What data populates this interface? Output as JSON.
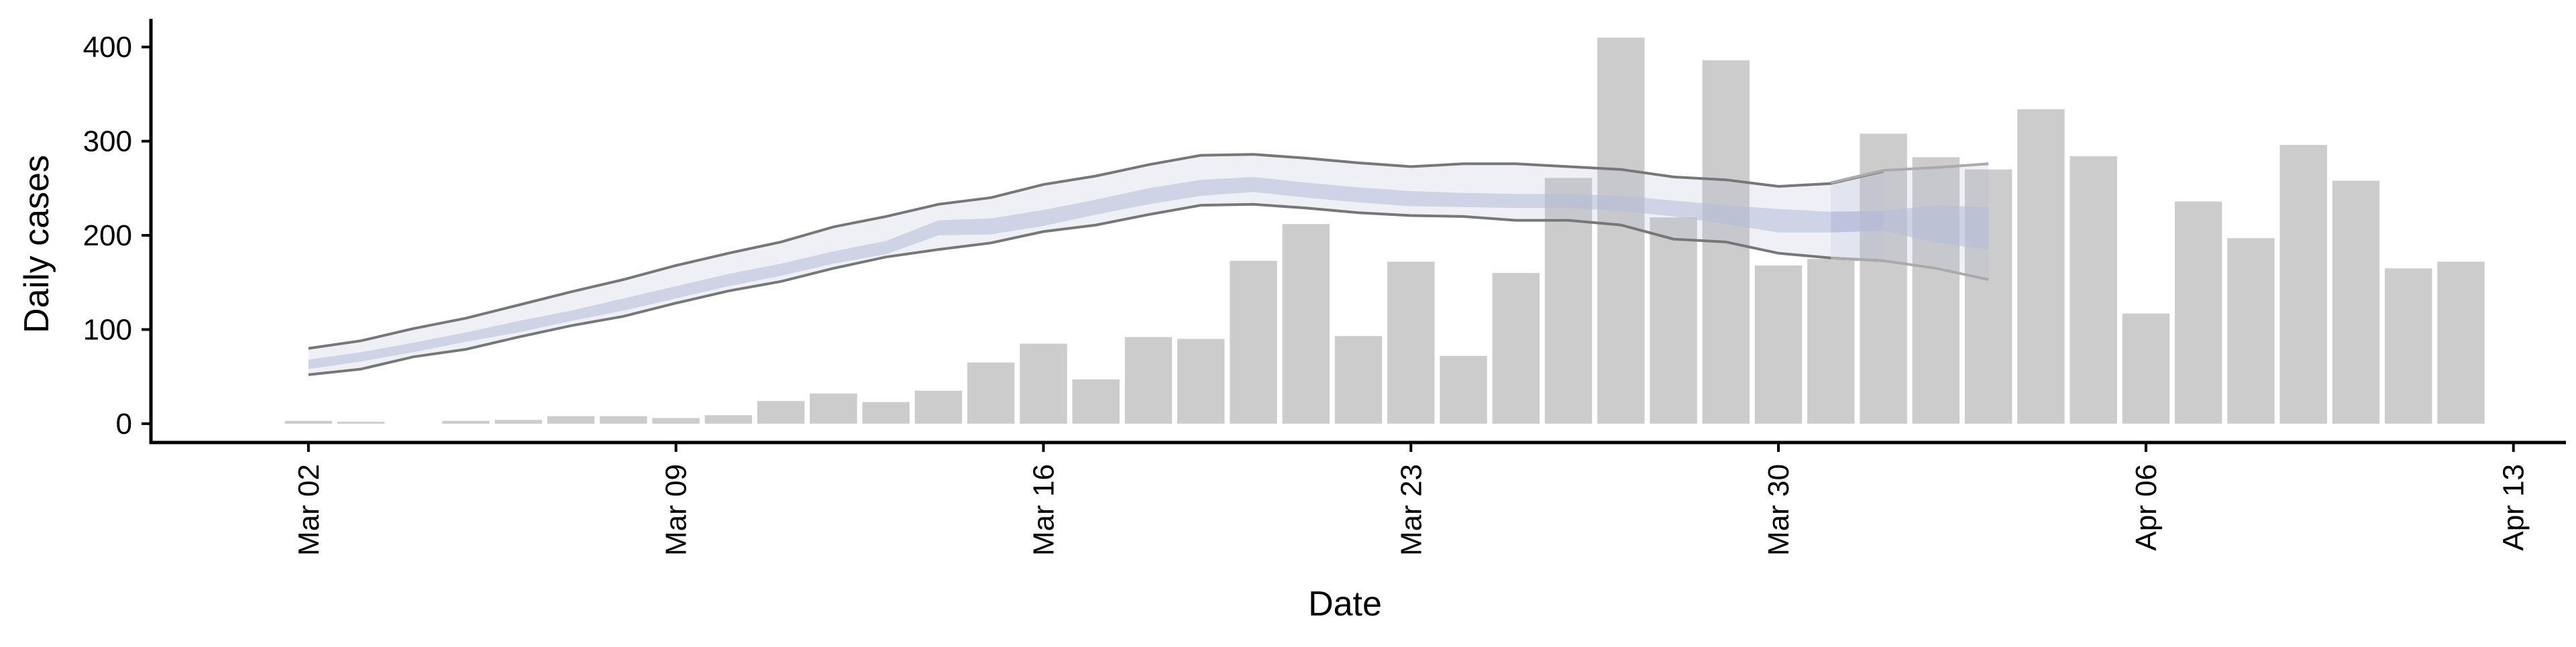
{
  "chart_data": {
    "type": "bar",
    "xlabel": "Date",
    "ylabel": "Daily cases",
    "ylim": [
      -20,
      430
    ],
    "y_ticks": [
      "0",
      "100",
      "200",
      "300",
      "400"
    ],
    "x_range": [
      "2020-02-28",
      "2020-04-14"
    ],
    "x_ticks": [
      {
        "date": "2020-03-02",
        "label": "Mar 02"
      },
      {
        "date": "2020-03-09",
        "label": "Mar 09"
      },
      {
        "date": "2020-03-16",
        "label": "Mar 16"
      },
      {
        "date": "2020-03-23",
        "label": "Mar 23"
      },
      {
        "date": "2020-03-30",
        "label": "Mar 30"
      },
      {
        "date": "2020-04-06",
        "label": "Apr 06"
      },
      {
        "date": "2020-04-13",
        "label": "Apr 13"
      }
    ],
    "grid": false,
    "legend": "none",
    "bars": {
      "color": "#cccccc",
      "dates": [
        "2020-03-02",
        "2020-03-03",
        "2020-03-04",
        "2020-03-05",
        "2020-03-06",
        "2020-03-07",
        "2020-03-08",
        "2020-03-09",
        "2020-03-10",
        "2020-03-11",
        "2020-03-12",
        "2020-03-13",
        "2020-03-14",
        "2020-03-15",
        "2020-03-16",
        "2020-03-17",
        "2020-03-18",
        "2020-03-19",
        "2020-03-20",
        "2020-03-21",
        "2020-03-22",
        "2020-03-23",
        "2020-03-24",
        "2020-03-25",
        "2020-03-26",
        "2020-03-27",
        "2020-03-28",
        "2020-03-29",
        "2020-03-30",
        "2020-03-31",
        "2020-04-01",
        "2020-04-02",
        "2020-04-03",
        "2020-04-04",
        "2020-04-05",
        "2020-04-06",
        "2020-04-07",
        "2020-04-08",
        "2020-04-09",
        "2020-04-10",
        "2020-04-11",
        "2020-04-12"
      ],
      "values": [
        3,
        2,
        0,
        3,
        4,
        8,
        8,
        6,
        9,
        24,
        32,
        23,
        35,
        65,
        85,
        47,
        92,
        90,
        173,
        212,
        93,
        172,
        72,
        160,
        261,
        410,
        219,
        386,
        168,
        175,
        308,
        283,
        270,
        334,
        284,
        117,
        236,
        197,
        296,
        258,
        165,
        172
      ]
    },
    "band_series": [
      {
        "dates": [
          "2020-03-02",
          "2020-03-03",
          "2020-03-04",
          "2020-03-05",
          "2020-03-06",
          "2020-03-07",
          "2020-03-08",
          "2020-03-09",
          "2020-03-10",
          "2020-03-11",
          "2020-03-12",
          "2020-03-13",
          "2020-03-14",
          "2020-03-15",
          "2020-03-16",
          "2020-03-17",
          "2020-03-18",
          "2020-03-19",
          "2020-03-20",
          "2020-03-21",
          "2020-03-22",
          "2020-03-23",
          "2020-03-24",
          "2020-03-25",
          "2020-03-26",
          "2020-03-27",
          "2020-03-28",
          "2020-03-29",
          "2020-03-30",
          "2020-03-31",
          "2020-04-01"
        ],
        "outer_upper": [
          80,
          88,
          101,
          112,
          126,
          140,
          153,
          168,
          181,
          193,
          209,
          220,
          233,
          240,
          254,
          263,
          275,
          285,
          286,
          282,
          277,
          273,
          276,
          276,
          273,
          270,
          262,
          259,
          252,
          255,
          268
        ],
        "outer_lower": [
          52,
          58,
          71,
          79,
          92,
          104,
          114,
          128,
          141,
          151,
          165,
          177,
          185,
          192,
          204,
          211,
          222,
          232,
          233,
          229,
          224,
          221,
          220,
          216,
          216,
          211,
          196,
          193,
          181,
          176,
          173
        ],
        "inner_upper": [
          68,
          76,
          86,
          97,
          109,
          120,
          133,
          146,
          159,
          170,
          183,
          194,
          216,
          218,
          227,
          238,
          250,
          259,
          262,
          256,
          251,
          247,
          245,
          244,
          244,
          242,
          237,
          232,
          228,
          225,
          226
        ],
        "inner_lower": [
          58,
          66,
          76,
          87,
          97,
          109,
          120,
          133,
          146,
          157,
          170,
          180,
          200,
          201,
          210,
          222,
          233,
          242,
          246,
          240,
          235,
          231,
          230,
          229,
          229,
          226,
          220,
          212,
          203,
          203,
          205
        ],
        "band_color": "#b4bcd8",
        "line_color": "#777777"
      },
      {
        "dates": [
          "2020-03-31",
          "2020-04-01",
          "2020-04-02",
          "2020-04-03"
        ],
        "outer_upper": [
          256,
          269,
          272,
          276
        ],
        "outer_lower": [
          176,
          173,
          165,
          153
        ],
        "inner_upper": [
          225,
          226,
          232,
          230
        ],
        "inner_lower": [
          203,
          205,
          192,
          185
        ],
        "band_color": "#b4bcd8",
        "line_color": "#aaaaaa"
      }
    ]
  }
}
